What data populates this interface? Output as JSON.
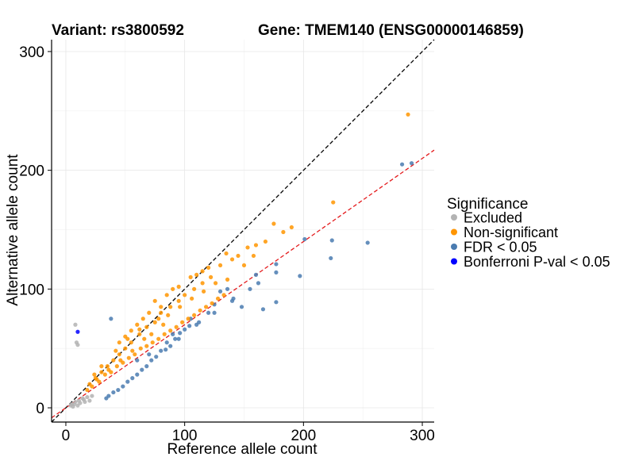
{
  "chart_data": {
    "type": "scatter",
    "title_variant": "Variant: rs3800592",
    "title_gene": "Gene: TMEM140 (ENSG00000146859)",
    "xlabel": "Reference allele count",
    "ylabel": "Alternative allele count",
    "xlim": [
      -12,
      310
    ],
    "ylim": [
      -12,
      310
    ],
    "x_ticks": [
      0,
      100,
      200,
      300
    ],
    "y_ticks": [
      0,
      100,
      200,
      300
    ],
    "grid": true,
    "reference_lines": [
      {
        "name": "identity",
        "slope": 1.0,
        "intercept": 0,
        "color": "#000000",
        "dash": true
      },
      {
        "name": "fit",
        "slope": 0.7,
        "intercept": 0,
        "color": "#e41a1c",
        "dash": true
      }
    ],
    "legend": {
      "title": "Significance",
      "position": "right",
      "entries": [
        {
          "label": "Excluded",
          "color": "#b3b3b3"
        },
        {
          "label": "Non-significant",
          "color": "#ff9500"
        },
        {
          "label": "FDR < 0.05",
          "color": "#4a7bb0"
        },
        {
          "label": "Bonferroni P-val < 0.05",
          "color": "#0000ff"
        }
      ]
    },
    "series": [
      {
        "name": "Excluded",
        "color": "#b3b3b3",
        "points": [
          [
            8,
            70
          ],
          [
            9,
            55
          ],
          [
            10,
            53
          ],
          [
            5,
            3
          ],
          [
            8,
            5
          ],
          [
            12,
            4
          ],
          [
            15,
            7
          ],
          [
            18,
            9
          ],
          [
            20,
            6
          ],
          [
            6,
            1
          ],
          [
            10,
            2
          ],
          [
            14,
            8
          ],
          [
            22,
            10
          ],
          [
            16,
            5
          ],
          [
            11,
            6
          ],
          [
            4,
            2
          ],
          [
            7,
            3
          ]
        ]
      },
      {
        "name": "Bonferroni P-val < 0.05",
        "color": "#0000ff",
        "points": [
          [
            10,
            64
          ]
        ]
      },
      {
        "name": "FDR < 0.05",
        "color": "#4a7bb0",
        "points": [
          [
            283,
            205
          ],
          [
            291,
            206
          ],
          [
            254,
            139
          ],
          [
            224,
            141
          ],
          [
            223,
            126
          ],
          [
            201,
            142
          ],
          [
            197,
            111
          ],
          [
            177,
            121
          ],
          [
            177,
            114
          ],
          [
            160,
            112
          ],
          [
            162,
            105
          ],
          [
            177,
            89
          ],
          [
            166,
            83
          ],
          [
            148,
            85
          ],
          [
            141,
            92
          ],
          [
            136,
            100
          ],
          [
            130,
            98
          ],
          [
            125,
            87
          ],
          [
            120,
            80
          ],
          [
            112,
            72
          ],
          [
            104,
            69
          ],
          [
            100,
            66
          ],
          [
            96,
            63
          ],
          [
            92,
            58
          ],
          [
            88,
            52
          ],
          [
            84,
            49
          ],
          [
            80,
            48
          ],
          [
            76,
            43
          ],
          [
            72,
            40
          ],
          [
            68,
            35
          ],
          [
            64,
            32
          ],
          [
            60,
            28
          ],
          [
            56,
            25
          ],
          [
            52,
            22
          ],
          [
            48,
            18
          ],
          [
            44,
            15
          ],
          [
            40,
            13
          ],
          [
            38,
            75
          ],
          [
            36,
            10
          ],
          [
            34,
            8
          ],
          [
            60,
            40
          ],
          [
            70,
            45
          ],
          [
            85,
            55
          ],
          [
            95,
            58
          ],
          [
            110,
            70
          ],
          [
            125,
            80
          ],
          [
            140,
            90
          ],
          [
            155,
            100
          ],
          [
            105,
            75
          ],
          [
            90,
            62
          ]
        ]
      },
      {
        "name": "Non-significant",
        "color": "#ff9500",
        "points": [
          [
            288,
            247
          ],
          [
            225,
            173
          ],
          [
            190,
            152
          ],
          [
            175,
            155
          ],
          [
            168,
            140
          ],
          [
            160,
            137
          ],
          [
            153,
            135
          ],
          [
            145,
            128
          ],
          [
            140,
            125
          ],
          [
            130,
            120
          ],
          [
            122,
            110
          ],
          [
            115,
            105
          ],
          [
            108,
            100
          ],
          [
            100,
            95
          ],
          [
            95,
            90
          ],
          [
            88,
            85
          ],
          [
            80,
            80
          ],
          [
            75,
            72
          ],
          [
            68,
            68
          ],
          [
            62,
            62
          ],
          [
            55,
            55
          ],
          [
            50,
            50
          ],
          [
            45,
            45
          ],
          [
            40,
            40
          ],
          [
            35,
            35
          ],
          [
            30,
            30
          ],
          [
            25,
            25
          ],
          [
            20,
            20
          ],
          [
            18,
            15
          ],
          [
            22,
            18
          ],
          [
            28,
            22
          ],
          [
            33,
            28
          ],
          [
            38,
            30
          ],
          [
            43,
            35
          ],
          [
            48,
            38
          ],
          [
            53,
            42
          ],
          [
            58,
            45
          ],
          [
            63,
            50
          ],
          [
            68,
            52
          ],
          [
            73,
            55
          ],
          [
            78,
            58
          ],
          [
            83,
            62
          ],
          [
            88,
            65
          ],
          [
            93,
            68
          ],
          [
            98,
            72
          ],
          [
            103,
            75
          ],
          [
            108,
            78
          ],
          [
            113,
            82
          ],
          [
            118,
            85
          ],
          [
            123,
            88
          ],
          [
            128,
            92
          ],
          [
            133,
            95
          ],
          [
            70,
            80
          ],
          [
            65,
            75
          ],
          [
            60,
            70
          ],
          [
            55,
            65
          ],
          [
            50,
            60
          ],
          [
            45,
            55
          ],
          [
            85,
            95
          ],
          [
            90,
            100
          ],
          [
            95,
            102
          ],
          [
            105,
            110
          ],
          [
            110,
            112
          ],
          [
            115,
            115
          ],
          [
            120,
            118
          ],
          [
            75,
            90
          ],
          [
            80,
            85
          ],
          [
            82,
            70
          ],
          [
            72,
            62
          ],
          [
            66,
            58
          ],
          [
            56,
            48
          ],
          [
            46,
            40
          ],
          [
            36,
            32
          ],
          [
            26,
            24
          ],
          [
            24,
            28
          ],
          [
            30,
            35
          ],
          [
            42,
            48
          ],
          [
            52,
            58
          ],
          [
            62,
            66
          ],
          [
            78,
            75
          ],
          [
            86,
            78
          ],
          [
            96,
            85
          ],
          [
            106,
            92
          ],
          [
            116,
            98
          ],
          [
            126,
            105
          ],
          [
            136,
            108
          ],
          [
            150,
            120
          ],
          [
            158,
            128
          ],
          [
            183,
            148
          ],
          [
            135,
            130
          ]
        ]
      }
    ]
  }
}
